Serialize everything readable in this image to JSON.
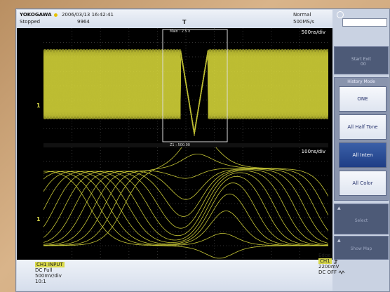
{
  "header": {
    "brand": "YOKOGAWA",
    "datetime": "2006/03/13 16:42:41",
    "status": "Stopped",
    "record_count": "9964",
    "trigger_marker": "T",
    "mode": "Normal",
    "sample_rate": "500MS/s"
  },
  "waveform_upper": {
    "scale": "500ns/div",
    "zoom_label": "Main : 2.5 k"
  },
  "waveform_lower": {
    "scale": "100ns/div",
    "zoom_label": "Z1 : 500.00"
  },
  "channel_info": {
    "tag": "CH1 INPUT",
    "coupling": "DC Full",
    "vdiv": "500mV/div",
    "probe": "10:1"
  },
  "trigger_info": {
    "type": "Edge",
    "channel": "CH1",
    "slope_icon": "rising-edge-icon",
    "level": "2200mV",
    "coupling": "DC OFF"
  },
  "panel": {
    "top_dim": "Start Exit\n   00",
    "history_mode_title": "History Mode",
    "buttons": [
      "ONE",
      "All Half Tone",
      "All Inten",
      "All Color"
    ],
    "active_button": "All Inten",
    "bottom1": "Select",
    "bottom2": "Show Map"
  },
  "colors": {
    "trace": "#dede3c",
    "active": "#1f3e86"
  }
}
